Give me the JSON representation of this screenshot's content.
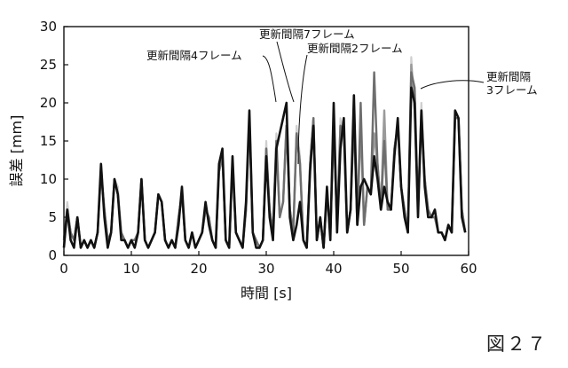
{
  "figure_label": "図２７",
  "chart_data": {
    "type": "line",
    "title": "",
    "xlabel": "時間 [s]",
    "ylabel": "誤差 [mm]",
    "xlim": [
      0,
      60
    ],
    "ylim": [
      0,
      30
    ],
    "xticks": [
      0,
      10,
      20,
      30,
      40,
      50,
      60
    ],
    "yticks": [
      0,
      5,
      10,
      15,
      20,
      25,
      30
    ],
    "grid": false,
    "series": [
      {
        "name": "更新間隔2フレーム",
        "color": "#cfcfcf",
        "width": 2.2,
        "label_anchor": [
          45,
          9
        ],
        "x": [
          0,
          0.5,
          1,
          1.5,
          2,
          2.5,
          3,
          3.5,
          4,
          4.5,
          5,
          5.5,
          6,
          6.5,
          7,
          7.5,
          8,
          8.5,
          9,
          9.5,
          10,
          10.5,
          11,
          11.5,
          12,
          12.5,
          13,
          13.5,
          14,
          14.5,
          15,
          15.5,
          16,
          16.5,
          17,
          17.5,
          18,
          18.5,
          19,
          19.5,
          20,
          20.5,
          21,
          21.5,
          22,
          22.5,
          23,
          23.5,
          24,
          24.5,
          25,
          25.5,
          26,
          26.5,
          27,
          27.5,
          28,
          28.5,
          29,
          29.5,
          30,
          30.5,
          31,
          31.5,
          32,
          32.5,
          33,
          33.5,
          34,
          34.5,
          35,
          35.5,
          36,
          36.5,
          37,
          37.5,
          38,
          38.5,
          39,
          39.5,
          40,
          40.5,
          41,
          41.5,
          42,
          42.5,
          43,
          43.5,
          44,
          44.5,
          45,
          45.5,
          46,
          46.5,
          47,
          47.5,
          48,
          48.5,
          49,
          49.5,
          50,
          50.5,
          51,
          51.5,
          52,
          52.5,
          53,
          53.5,
          54,
          54.5,
          55,
          55.5,
          56,
          56.5,
          57,
          57.5,
          58,
          58.5,
          59,
          59.5
        ],
        "values": [
          2,
          7,
          3,
          2,
          5,
          1,
          2,
          1,
          2,
          1,
          3,
          12,
          6,
          2,
          3,
          10,
          9,
          3,
          2,
          1,
          2,
          2,
          3,
          10,
          2,
          1,
          2,
          3,
          8,
          7,
          2,
          1,
          2,
          1,
          5,
          8,
          2,
          1,
          3,
          1,
          2,
          3,
          6,
          5,
          2,
          1,
          11,
          13,
          2,
          1,
          13,
          3,
          2,
          1,
          6,
          18,
          3,
          2,
          1,
          2,
          15,
          6,
          3,
          16,
          5,
          7,
          18,
          6,
          3,
          17,
          13,
          2,
          1,
          12,
          18,
          2,
          5,
          1,
          8,
          3,
          17,
          4,
          18,
          16,
          3,
          6,
          19,
          4,
          18,
          4,
          9,
          8,
          16,
          12,
          6,
          15,
          6,
          6,
          14,
          17,
          9,
          6,
          3,
          26,
          19,
          6,
          20,
          10,
          6,
          5,
          5,
          3,
          3,
          2,
          4,
          3,
          18,
          18,
          6,
          3
        ]
      },
      {
        "name": "更新間隔4フレーム",
        "color": "#9a9a9a",
        "width": 2.4,
        "label_anchor": [
          31,
          18.5
        ],
        "x": [
          0,
          0.5,
          1,
          1.5,
          2,
          2.5,
          3,
          3.5,
          4,
          4.5,
          5,
          5.5,
          6,
          6.5,
          7,
          7.5,
          8,
          8.5,
          9,
          9.5,
          10,
          10.5,
          11,
          11.5,
          12,
          12.5,
          13,
          13.5,
          14,
          14.5,
          15,
          15.5,
          16,
          16.5,
          17,
          17.5,
          18,
          18.5,
          19,
          19.5,
          20,
          20.5,
          21,
          21.5,
          22,
          22.5,
          23,
          23.5,
          24,
          24.5,
          25,
          25.5,
          26,
          26.5,
          27,
          27.5,
          28,
          28.5,
          29,
          29.5,
          30,
          30.5,
          31,
          31.5,
          32,
          32.5,
          33,
          33.5,
          34,
          34.5,
          35,
          35.5,
          36,
          36.5,
          37,
          37.5,
          38,
          38.5,
          39,
          39.5,
          40,
          40.5,
          41,
          41.5,
          42,
          42.5,
          43,
          43.5,
          44,
          44.5,
          45,
          45.5,
          46,
          46.5,
          47,
          47.5,
          48,
          48.5,
          49,
          49.5,
          50,
          50.5,
          51,
          51.5,
          52,
          52.5,
          53,
          53.5,
          54,
          54.5,
          55,
          55.5,
          56,
          56.5,
          57,
          57.5,
          58,
          58.5,
          59,
          59.5
        ],
        "values": [
          2,
          6,
          3,
          2,
          5,
          1,
          2,
          1,
          2,
          1,
          3,
          11,
          6,
          2,
          3,
          10,
          8,
          3,
          2,
          1,
          2,
          2,
          3,
          10,
          2,
          1,
          2,
          3,
          8,
          7,
          2,
          1,
          2,
          1,
          5,
          8,
          2,
          1,
          3,
          1,
          2,
          3,
          6,
          5,
          2,
          1,
          11,
          13,
          2,
          1,
          12,
          3,
          2,
          1,
          6,
          18,
          3,
          2,
          1,
          2,
          14,
          6,
          3,
          15,
          5,
          7,
          17,
          6,
          3,
          16,
          12,
          2,
          1,
          12,
          18,
          2,
          5,
          1,
          8,
          3,
          17,
          4,
          17,
          16,
          3,
          6,
          18,
          4,
          17,
          4,
          9,
          8,
          16,
          12,
          6,
          19,
          6,
          6,
          14,
          17,
          9,
          6,
          3,
          25,
          19,
          6,
          19,
          10,
          6,
          5,
          5,
          3,
          3,
          2,
          4,
          3,
          18,
          18,
          6,
          3
        ]
      },
      {
        "name": "更新間隔3フレーム",
        "color": "#6e6e6e",
        "width": 2.4,
        "label_anchor": [
          52,
          21
        ],
        "x": [
          0,
          0.5,
          1,
          1.5,
          2,
          2.5,
          3,
          3.5,
          4,
          4.5,
          5,
          5.5,
          6,
          6.5,
          7,
          7.5,
          8,
          8.5,
          9,
          9.5,
          10,
          10.5,
          11,
          11.5,
          12,
          12.5,
          13,
          13.5,
          14,
          14.5,
          15,
          15.5,
          16,
          16.5,
          17,
          17.5,
          18,
          18.5,
          19,
          19.5,
          20,
          20.5,
          21,
          21.5,
          22,
          22.5,
          23,
          23.5,
          24,
          24.5,
          25,
          25.5,
          26,
          26.5,
          27,
          27.5,
          28,
          28.5,
          29,
          29.5,
          30,
          30.5,
          31,
          31.5,
          32,
          32.5,
          33,
          33.5,
          34,
          34.5,
          35,
          35.5,
          36,
          36.5,
          37,
          37.5,
          38,
          38.5,
          39,
          39.5,
          40,
          40.5,
          41,
          41.5,
          42,
          42.5,
          43,
          43.5,
          44,
          44.5,
          45,
          45.5,
          46,
          46.5,
          47,
          47.5,
          48,
          48.5,
          49,
          49.5,
          50,
          50.5,
          51,
          51.5,
          52,
          52.5,
          53,
          53.5,
          54,
          54.5,
          55,
          55.5,
          56,
          56.5,
          57,
          57.5,
          58,
          58.5,
          59,
          59.5
        ],
        "values": [
          2,
          6,
          3,
          2,
          5,
          1,
          2,
          1,
          2,
          1,
          3,
          11,
          6,
          2,
          3,
          10,
          8,
          3,
          2,
          1,
          2,
          2,
          3,
          10,
          2,
          1,
          2,
          3,
          8,
          7,
          2,
          1,
          2,
          1,
          5,
          8,
          2,
          1,
          3,
          1,
          2,
          3,
          6,
          5,
          2,
          1,
          11,
          13,
          2,
          1,
          12,
          3,
          2,
          1,
          6,
          18,
          3,
          2,
          1,
          2,
          14,
          6,
          3,
          15,
          5,
          7,
          17,
          6,
          3,
          16,
          12,
          2,
          1,
          12,
          18,
          2,
          5,
          1,
          8,
          3,
          17,
          4,
          17,
          16,
          3,
          6,
          18,
          4,
          20,
          4,
          9,
          8,
          24,
          12,
          6,
          15,
          6,
          6,
          14,
          17,
          9,
          6,
          3,
          24,
          22,
          6,
          18,
          10,
          6,
          5,
          5,
          3,
          3,
          2,
          4,
          3,
          18,
          18,
          6,
          3
        ]
      },
      {
        "name": "更新間隔7フレーム",
        "color": "#111111",
        "width": 2.6,
        "label_anchor": [
          34,
          19
        ],
        "x": [
          0,
          0.5,
          1,
          1.5,
          2,
          2.5,
          3,
          3.5,
          4,
          4.5,
          5,
          5.5,
          6,
          6.5,
          7,
          7.5,
          8,
          8.5,
          9,
          9.5,
          10,
          10.5,
          11,
          11.5,
          12,
          12.5,
          13,
          13.5,
          14,
          14.5,
          15,
          15.5,
          16,
          16.5,
          17,
          17.5,
          18,
          18.5,
          19,
          19.5,
          20,
          20.5,
          21,
          21.5,
          22,
          22.5,
          23,
          23.5,
          24,
          24.5,
          25,
          25.5,
          26,
          26.5,
          27,
          27.5,
          28,
          28.5,
          29,
          29.5,
          30,
          30.5,
          31,
          31.5,
          32,
          32.5,
          33,
          33.5,
          34,
          34.5,
          35,
          35.5,
          36,
          36.5,
          37,
          37.5,
          38,
          38.5,
          39,
          39.5,
          40,
          40.5,
          41,
          41.5,
          42,
          42.5,
          43,
          43.5,
          44,
          44.5,
          45,
          45.5,
          46,
          46.5,
          47,
          47.5,
          48,
          48.5,
          49,
          49.5,
          50,
          50.5,
          51,
          51.5,
          52,
          52.5,
          53,
          53.5,
          54,
          54.5,
          55,
          55.5,
          56,
          56.5,
          57,
          57.5,
          58,
          58.5,
          59,
          59.5
        ],
        "values": [
          1,
          6,
          2,
          1,
          5,
          1,
          2,
          1,
          2,
          1,
          3,
          12,
          5,
          1,
          3,
          10,
          8,
          2,
          2,
          1,
          2,
          1,
          3,
          10,
          2,
          1,
          2,
          3,
          8,
          7,
          2,
          1,
          2,
          1,
          4,
          9,
          2,
          1,
          3,
          1,
          2,
          3,
          7,
          4,
          2,
          1,
          12,
          14,
          2,
          1,
          13,
          3,
          2,
          1,
          7,
          19,
          3,
          1,
          1,
          2,
          13,
          5,
          2,
          14,
          16,
          18,
          20,
          5,
          2,
          4,
          7,
          2,
          1,
          11,
          17,
          2,
          5,
          1,
          9,
          2,
          20,
          3,
          14,
          18,
          3,
          6,
          21,
          4,
          9,
          10,
          9,
          8,
          13,
          10,
          6,
          9,
          7,
          6,
          13,
          18,
          9,
          5,
          3,
          22,
          20,
          5,
          19,
          9,
          5,
          5,
          6,
          3,
          3,
          2,
          4,
          3,
          19,
          18,
          5,
          3
        ]
      }
    ],
    "annotations": [
      {
        "text": "更新間隔7フレーム",
        "series": "更新間隔7フレーム"
      },
      {
        "text": "更新間隔2フレーム",
        "series": "更新間隔2フレーム"
      },
      {
        "text": "更新間隔4フレーム",
        "series": "更新間隔4フレーム"
      },
      {
        "text": "更新間隔",
        "text2": "3フレーム",
        "series": "更新間隔3フレーム"
      }
    ]
  },
  "colors": {
    "axis": "#111111",
    "background": "#ffffff"
  }
}
